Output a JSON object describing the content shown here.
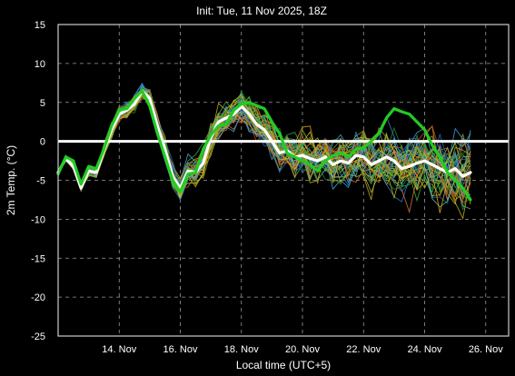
{
  "chart_data": {
    "type": "line",
    "title": "Init: Tue, 11 Nov 2025, 18Z",
    "xlabel": "Local time (UTC+5)",
    "ylabel": "2m Temp. (°C)",
    "ylim": [
      -25,
      15
    ],
    "yticks": [
      -25,
      -20,
      -15,
      -10,
      -5,
      0,
      5,
      10,
      15
    ],
    "xlim": [
      0,
      14.75
    ],
    "xtick_positions": [
      2,
      4,
      6,
      8,
      10,
      12,
      14
    ],
    "xtick_labels": [
      "14. Nov",
      "16. Nov",
      "18. Nov",
      "20. Nov",
      "22. Nov",
      "24. Nov",
      "26. Nov"
    ],
    "grid": true,
    "legend": "none",
    "zero_line": {
      "y": 0,
      "color": "#ffffff"
    },
    "step_days": 0.25,
    "background": "#000000",
    "series": [
      {
        "role": "mean",
        "color": "#ffffff",
        "values": [
          -4,
          -2.2,
          -3.2,
          -6,
          -3.8,
          -4,
          -1.2,
          1.5,
          3.5,
          4,
          4.8,
          6.5,
          5.5,
          2,
          -1,
          -4.5,
          -6,
          -3.8,
          -4,
          -2.8,
          0.5,
          2.5,
          3,
          3.5,
          4.5,
          3.5,
          2.2,
          1.5,
          0,
          -1.5,
          -1.2,
          -2,
          -1.8,
          -2.2,
          -2.5,
          -2,
          -3,
          -2.5,
          -2.8,
          -1.8,
          -2,
          -3,
          -2.5,
          -2,
          -2.5,
          -3.5,
          -3.2,
          -2.8,
          -2.5,
          -3,
          -3.5,
          -4,
          -3.5,
          -4.5,
          -4
        ]
      },
      {
        "role": "control",
        "color": "#22cc22",
        "values": [
          -4.2,
          -2,
          -2.5,
          -5.5,
          -3.2,
          -3.5,
          -1,
          2,
          4,
          4.2,
          5.5,
          6.5,
          4.5,
          1,
          -2,
          -5,
          -6.5,
          -4.2,
          -4,
          -1,
          0.8,
          2,
          2.2,
          4,
          4.8,
          5,
          4.6,
          4.2,
          2.5,
          1,
          -1.5,
          -2,
          -2.5,
          -3,
          -3.8,
          -2.5,
          -1.8,
          -1.5,
          -2,
          -1,
          -0.8,
          0,
          1,
          3,
          4.2,
          3.8,
          3.5,
          2.5,
          1.5,
          -0.5,
          -2,
          -4,
          -5,
          -6,
          -7.5
        ]
      }
    ]
  }
}
